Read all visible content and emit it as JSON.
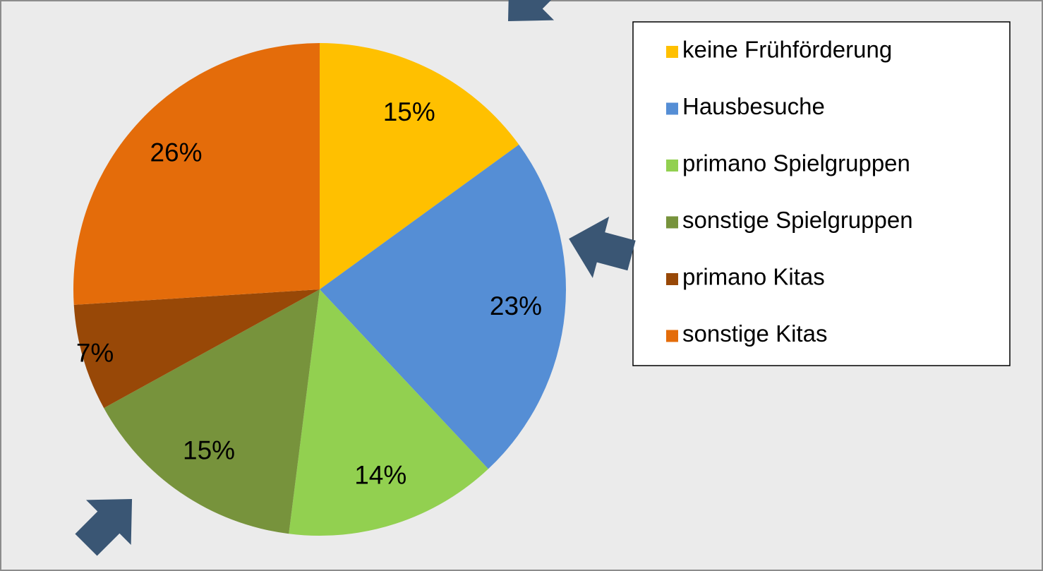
{
  "chart_data": {
    "type": "pie",
    "categories": [
      "keine Frühförderung",
      "Hausbesuche",
      "primano Spielgruppen",
      "sonstige Spielgruppen",
      "primano Kitas",
      "sonstige Kitas"
    ],
    "values": [
      15,
      23,
      14,
      15,
      7,
      26
    ],
    "value_labels": [
      "15%",
      "23%",
      "14%",
      "15%",
      "7%",
      "26%"
    ],
    "colors": [
      "#ffc000",
      "#558ed5",
      "#92d050",
      "#77933c",
      "#984807",
      "#e46c0a"
    ],
    "legend": "right"
  }
}
